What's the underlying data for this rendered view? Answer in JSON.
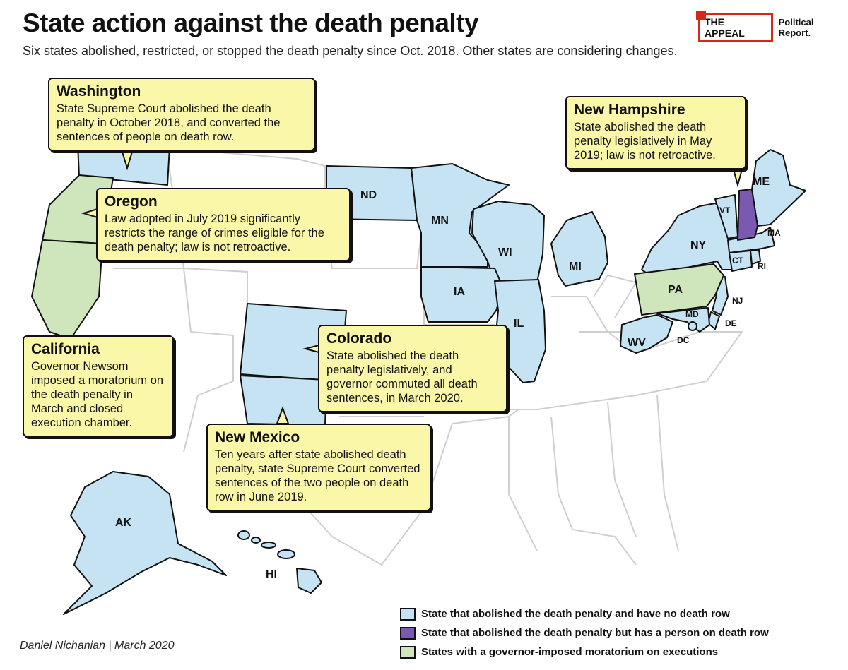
{
  "title": "State action against the death penalty",
  "subtitle": "Six states abolished, restricted, or stopped the death penalty since Oct. 2018. Other states are considering changes.",
  "logo": {
    "brand": "THE APPEAL",
    "suffix": "Political Report."
  },
  "colors": {
    "abolished_no_row": "#c6e3f3",
    "abolished_with_row": "#7b59b0",
    "moratorium": "#cfe6bd",
    "callout_bg": "#fbf7a9",
    "other_states": "#ffffff",
    "brand_red": "#d62718"
  },
  "state_labels": {
    "nd": "ND",
    "mn": "MN",
    "wi": "WI",
    "ia": "IA",
    "il": "IL",
    "mi": "MI",
    "ny": "NY",
    "vt": "VT",
    "me": "ME",
    "ma": "MA",
    "ct": "CT",
    "ri": "RI",
    "pa": "PA",
    "nj": "NJ",
    "md": "MD",
    "de": "DE",
    "dc": "DC",
    "wv": "WV",
    "ak": "AK",
    "hi": "HI"
  },
  "callouts": {
    "washington": {
      "name": "Washington",
      "text": "State Supreme Court abolished the death penalty in October 2018, and converted the sentences of people on death row."
    },
    "oregon": {
      "name": "Oregon",
      "text": "Law adopted in July 2019 significantly restricts the range of crimes eligible for the death penalty; law is not retroactive."
    },
    "california": {
      "name": "California",
      "text": "Governor Newsom imposed a moratorium on the death penalty in March and closed execution chamber."
    },
    "colorado": {
      "name": "Colorado",
      "text": "State abolished the death penalty legislatively, and governor commuted all death sentences, in March 2020."
    },
    "new_mexico": {
      "name": "New Mexico",
      "text": "Ten years after state abolished death penalty, state Supreme Court converted sentences of the two people on death row in June 2019."
    },
    "new_hampshire": {
      "name": "New Hampshire",
      "text": "State abolished the death penalty legislatively in May 2019; law is not retroactive."
    }
  },
  "legend": [
    {
      "label": "State that abolished the death penalty and have no death row",
      "color": "#c6e3f3"
    },
    {
      "label": "State that abolished the death penalty but has a person on death row",
      "color": "#7b59b0"
    },
    {
      "label": "States with a governor-imposed moratorium on executions",
      "color": "#cfe6bd"
    }
  ],
  "credit": "Daniel Nichanian | March 2020"
}
